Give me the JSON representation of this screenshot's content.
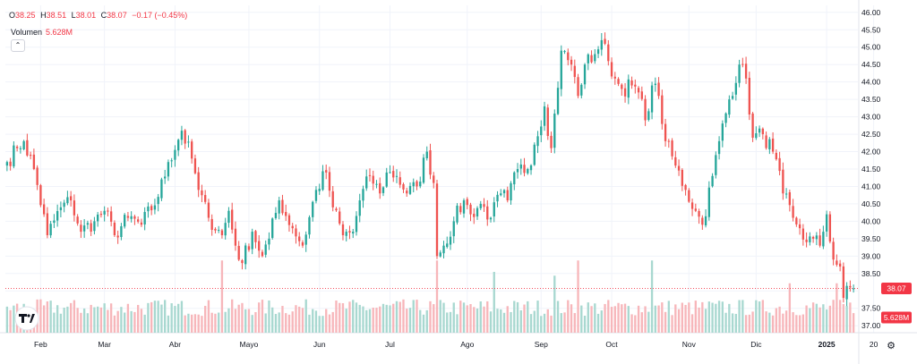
{
  "legend": {
    "open_key": "O",
    "open": "38.25",
    "high_key": "H",
    "high": "38.51",
    "low_key": "L",
    "low": "38.01",
    "close_key": "C",
    "close": "38.07",
    "change": "−0.17 (−0.45%)",
    "volume_label": "Volumen",
    "volume_value": "5.628M"
  },
  "controls": {
    "collapse_icon": "chevron-up-icon",
    "settings_icon": "gear-icon"
  },
  "colors": {
    "up": "#26a69a",
    "down": "#ef5350",
    "up_volume": "#a8d8d0",
    "down_volume": "#f7b6ba",
    "price_line": "#f23645",
    "grid": "#f0f3fa"
  },
  "chart_data": {
    "type": "candlestick",
    "ylim": [
      36.8,
      46.2
    ],
    "y_ticks": [
      "46.00",
      "45.50",
      "45.00",
      "44.50",
      "44.00",
      "43.50",
      "43.00",
      "42.50",
      "42.00",
      "41.50",
      "41.00",
      "40.50",
      "40.00",
      "39.50",
      "39.00",
      "38.50",
      "38.00",
      "37.50",
      "37.00"
    ],
    "x_ticks": [
      {
        "label": "Feb",
        "i": 10
      },
      {
        "label": "Mar",
        "i": 29
      },
      {
        "label": "Abr",
        "i": 50
      },
      {
        "label": "Mayo",
        "i": 72
      },
      {
        "label": "Jun",
        "i": 93
      },
      {
        "label": "Jul",
        "i": 114
      },
      {
        "label": "Ago",
        "i": 137
      },
      {
        "label": "Sep",
        "i": 159
      },
      {
        "label": "Oct",
        "i": 180
      },
      {
        "label": "Nov",
        "i": 203
      },
      {
        "label": "Dic",
        "i": 223
      },
      {
        "label": "2025",
        "i": 244
      },
      {
        "label": "20",
        "i": 258
      }
    ],
    "last_price_label": "38.07",
    "last_price": 38.07,
    "volume_label": "5.628M",
    "anchors": [
      [
        0,
        41.7
      ],
      [
        3,
        42.1
      ],
      [
        5,
        42.3
      ],
      [
        8,
        41.5
      ],
      [
        12,
        39.6
      ],
      [
        16,
        40.4
      ],
      [
        19,
        40.6
      ],
      [
        22,
        39.7
      ],
      [
        26,
        40.0
      ],
      [
        29,
        40.3
      ],
      [
        32,
        39.6
      ],
      [
        36,
        40.1
      ],
      [
        40,
        39.9
      ],
      [
        45,
        40.7
      ],
      [
        48,
        41.7
      ],
      [
        52,
        42.6
      ],
      [
        55,
        41.8
      ],
      [
        57,
        40.9
      ],
      [
        60,
        40.1
      ],
      [
        64,
        39.6
      ],
      [
        66,
        40.3
      ],
      [
        68,
        39.3
      ],
      [
        70,
        38.8
      ],
      [
        73,
        39.7
      ],
      [
        76,
        39.0
      ],
      [
        78,
        39.5
      ],
      [
        81,
        40.6
      ],
      [
        85,
        39.8
      ],
      [
        88,
        39.3
      ],
      [
        92,
        40.9
      ],
      [
        95,
        41.4
      ],
      [
        97,
        40.4
      ],
      [
        100,
        39.6
      ],
      [
        103,
        39.7
      ],
      [
        105,
        40.6
      ],
      [
        108,
        41.3
      ],
      [
        111,
        40.8
      ],
      [
        113,
        41.4
      ],
      [
        116,
        41.3
      ],
      [
        119,
        40.8
      ],
      [
        122,
        41.0
      ],
      [
        125,
        42.0
      ],
      [
        127,
        41.1
      ],
      [
        128,
        39.0
      ],
      [
        130,
        39.3
      ],
      [
        133,
        40.0
      ],
      [
        136,
        40.6
      ],
      [
        138,
        40.2
      ],
      [
        141,
        40.5
      ],
      [
        144,
        40.1
      ],
      [
        147,
        40.8
      ],
      [
        149,
        40.6
      ],
      [
        152,
        41.5
      ],
      [
        155,
        41.5
      ],
      [
        157,
        42.2
      ],
      [
        160,
        43.3
      ],
      [
        162,
        42.1
      ],
      [
        165,
        44.9
      ],
      [
        168,
        44.5
      ],
      [
        170,
        43.6
      ],
      [
        172,
        44.5
      ],
      [
        175,
        44.8
      ],
      [
        177,
        45.2
      ],
      [
        179,
        44.6
      ],
      [
        181,
        44.1
      ],
      [
        183,
        43.8
      ],
      [
        186,
        43.9
      ],
      [
        188,
        43.7
      ],
      [
        190,
        42.9
      ],
      [
        192,
        43.9
      ],
      [
        194,
        43.6
      ],
      [
        196,
        42.3
      ],
      [
        199,
        41.6
      ],
      [
        202,
        40.9
      ],
      [
        205,
        40.3
      ],
      [
        207,
        39.9
      ],
      [
        210,
        41.3
      ],
      [
        212,
        42.3
      ],
      [
        215,
        43.5
      ],
      [
        218,
        44.5
      ],
      [
        220,
        44.1
      ],
      [
        222,
        42.4
      ],
      [
        225,
        42.5
      ],
      [
        228,
        42.0
      ],
      [
        231,
        40.8
      ],
      [
        234,
        40.1
      ],
      [
        236,
        39.8
      ],
      [
        238,
        39.4
      ],
      [
        240,
        39.5
      ],
      [
        242,
        39.3
      ],
      [
        244,
        40.2
      ],
      [
        246,
        38.9
      ],
      [
        248,
        38.7
      ],
      [
        249,
        37.8
      ],
      [
        251,
        38.1
      ],
      [
        252,
        38.07
      ]
    ],
    "volume_spikes": [
      [
        64,
        1.9
      ],
      [
        128,
        1.9
      ],
      [
        145,
        1.6
      ],
      [
        163,
        1.5
      ],
      [
        170,
        1.9
      ],
      [
        192,
        1.9
      ],
      [
        233,
        1.3
      ],
      [
        247,
        1.3
      ]
    ]
  }
}
